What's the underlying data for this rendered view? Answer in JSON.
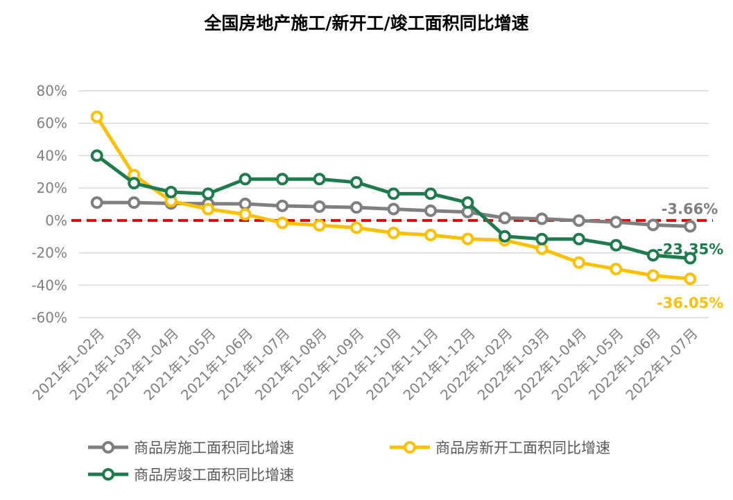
{
  "chart_data": {
    "type": "line",
    "title": "全国房地产施工/新开工/竣工面积同比增速",
    "categories": [
      "2021年1-02月",
      "2021年1-03月",
      "2021年1-04月",
      "2021年1-05月",
      "2021年1-06月",
      "2021年1-07月",
      "2021年1-08月",
      "2021年1-09月",
      "2021年1-10月",
      "2021年1-11月",
      "2021年1-12月",
      "2022年1-02月",
      "2022年1-03月",
      "2022年1-04月",
      "2022年1-05月",
      "2022年1-06月",
      "2022年1-07月"
    ],
    "y_ticks": [
      "80%",
      "60%",
      "40%",
      "20%",
      "0%",
      "-20%",
      "-40%",
      "-60%"
    ],
    "ylim": [
      -60,
      80
    ],
    "grid": true,
    "legend_position": "bottom",
    "reference_line": {
      "value": 0,
      "color": "#e00000",
      "style": "dashed"
    },
    "series": [
      {
        "name": "商品房施工面积同比增速",
        "color": "#7f7f7f",
        "values": [
          11.0,
          11.0,
          10.5,
          10.3,
          10.2,
          9.0,
          8.5,
          8.0,
          7.0,
          6.0,
          5.2,
          1.5,
          1.0,
          -0.1,
          -1.0,
          -2.8,
          -3.66
        ],
        "end_label": "-3.66%"
      },
      {
        "name": "商品房新开工面积同比增速",
        "color": "#ffc000",
        "values": [
          64.0,
          28.0,
          12.0,
          7.0,
          3.8,
          -1.5,
          -3.0,
          -4.5,
          -7.7,
          -9.0,
          -11.4,
          -12.2,
          -17.5,
          -26.0,
          -30.0,
          -34.0,
          -36.05
        ],
        "end_label": "-36.05%"
      },
      {
        "name": "商品房竣工面积同比增速",
        "color": "#1e7b4d",
        "values": [
          40.0,
          23.0,
          17.5,
          16.5,
          25.5,
          25.5,
          25.5,
          23.5,
          16.5,
          16.5,
          11.0,
          -9.8,
          -11.5,
          -11.5,
          -15.3,
          -21.5,
          -23.35
        ],
        "end_label": "-23.35%"
      }
    ]
  }
}
